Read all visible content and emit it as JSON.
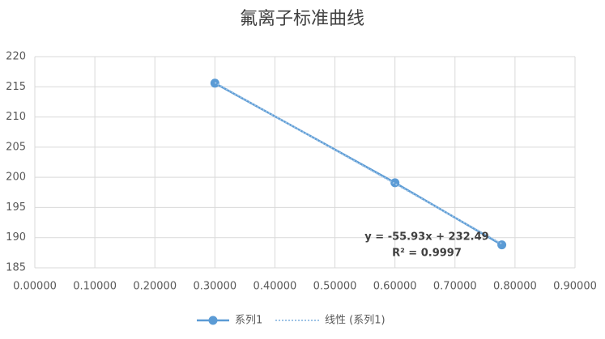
{
  "chart_data": {
    "type": "scatter",
    "title": "氟离子标准曲线",
    "series": [
      {
        "name": "系列1",
        "color": "#5b9bd5",
        "x": [
          0.3,
          0.6,
          0.778
        ],
        "values": [
          215.6,
          199.1,
          188.8
        ]
      }
    ],
    "trendline": {
      "name": "线性 (系列1)",
      "color": "#5b9bd5",
      "x": [
        0.3,
        0.778
      ],
      "values": [
        215.71,
        188.98
      ],
      "equation": "y = -55.93x + 232.49",
      "r_squared": "R² = 0.9997"
    },
    "xlim": [
      0,
      0.9
    ],
    "xticks": [
      {
        "value": 0,
        "label": "0.00000"
      },
      {
        "value": 0.1,
        "label": "0.10000"
      },
      {
        "value": 0.2,
        "label": "0.20000"
      },
      {
        "value": 0.3,
        "label": "0.30000"
      },
      {
        "value": 0.4,
        "label": "0.40000"
      },
      {
        "value": 0.5,
        "label": "0.50000"
      },
      {
        "value": 0.6,
        "label": "0.60000"
      },
      {
        "value": 0.7,
        "label": "0.70000"
      },
      {
        "value": 0.8,
        "label": "0.80000"
      },
      {
        "value": 0.9,
        "label": "0.90000"
      }
    ],
    "ylim": [
      185,
      220
    ],
    "yticks": [
      185,
      190,
      195,
      200,
      205,
      210,
      215,
      220
    ],
    "grid": true
  }
}
